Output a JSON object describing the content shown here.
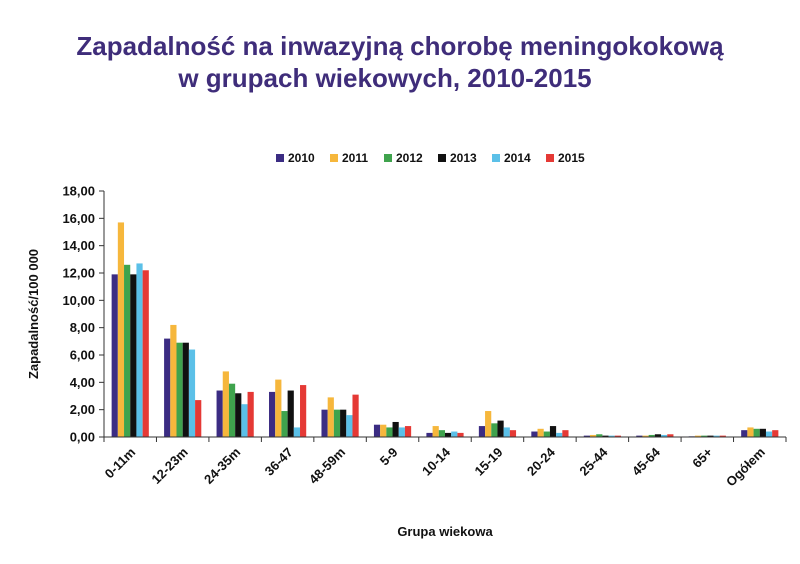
{
  "chart_data": {
    "type": "bar",
    "title": "Zapadalność na inwazyjną chorobę meningokokową",
    "subtitle": "w grupach wiekowych, 2010-2015",
    "xlabel": "Grupa wiekowa",
    "ylabel": "Zapadalność/100 000",
    "ylim": [
      0,
      18
    ],
    "yticks": [
      "0,00",
      "2,00",
      "4,00",
      "6,00",
      "8,00",
      "10,00",
      "12,00",
      "14,00",
      "16,00",
      "18,00"
    ],
    "grid": false,
    "legend_position": "top",
    "categories": [
      "0-11m",
      "12-23m",
      "24-35m",
      "36-47",
      "48-59m",
      "5-9",
      "10-14",
      "15-19",
      "20-24",
      "25-44",
      "45-64",
      "65+",
      "Ogółem"
    ],
    "series": [
      {
        "name": "2010",
        "color": "#3b2c83",
        "values": [
          11.9,
          7.2,
          3.4,
          3.3,
          2.0,
          0.9,
          0.3,
          0.8,
          0.4,
          0.1,
          0.1,
          0.05,
          0.5
        ]
      },
      {
        "name": "2011",
        "color": "#f6b73c",
        "values": [
          15.7,
          8.2,
          4.8,
          4.2,
          2.9,
          0.9,
          0.8,
          1.9,
          0.6,
          0.15,
          0.1,
          0.1,
          0.7
        ]
      },
      {
        "name": "2012",
        "color": "#3fa34d",
        "values": [
          12.6,
          6.9,
          3.9,
          1.9,
          2.0,
          0.7,
          0.5,
          1.0,
          0.4,
          0.2,
          0.15,
          0.1,
          0.6
        ]
      },
      {
        "name": "2013",
        "color": "#111111",
        "values": [
          11.9,
          6.9,
          3.2,
          3.4,
          2.0,
          1.1,
          0.3,
          1.2,
          0.8,
          0.1,
          0.2,
          0.1,
          0.6
        ]
      },
      {
        "name": "2014",
        "color": "#5bc0e8",
        "values": [
          12.7,
          6.4,
          2.4,
          0.7,
          1.6,
          0.7,
          0.4,
          0.7,
          0.3,
          0.1,
          0.15,
          0.1,
          0.4
        ]
      },
      {
        "name": "2015",
        "color": "#e53935",
        "values": [
          12.2,
          2.7,
          3.3,
          3.8,
          3.1,
          0.8,
          0.3,
          0.5,
          0.5,
          0.1,
          0.2,
          0.1,
          0.5
        ]
      }
    ]
  }
}
